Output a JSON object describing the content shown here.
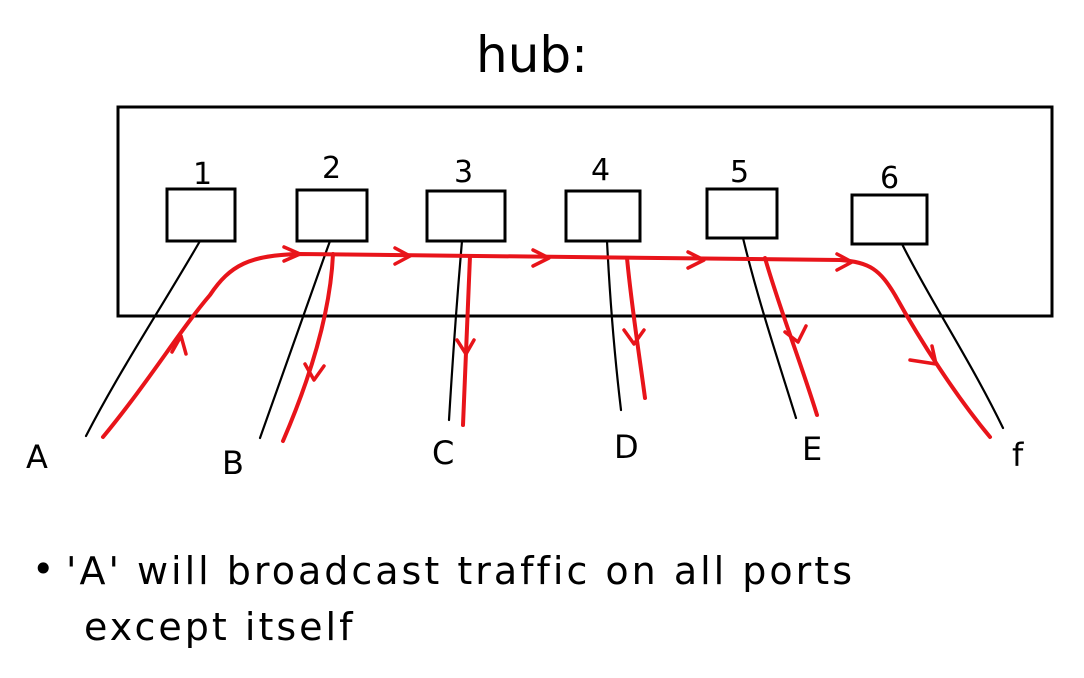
{
  "diagram": {
    "title": "hub:",
    "ports": [
      "1",
      "2",
      "3",
      "4",
      "5",
      "6"
    ],
    "devices": [
      "A",
      "B",
      "C",
      "D",
      "E",
      "f"
    ],
    "note": {
      "bullet": "•",
      "line1": "'A' will broadcast traffic on all ports",
      "line2": "except itself"
    },
    "colors": {
      "ink": "#000000",
      "traffic": "#e8141a",
      "background": "#ffffff"
    }
  }
}
